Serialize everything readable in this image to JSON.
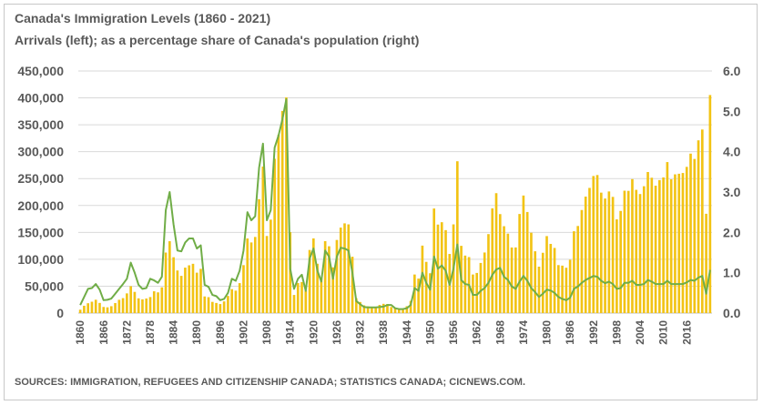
{
  "chart_data": {
    "type": "bar",
    "title": "Canada's  Immigration  Levels  (1860 - 2021)",
    "subtitle": "Arrivals  (left);  as  a  percentage  share  of  Canada's  population  (right)",
    "source": "SOURCES: IMMIGRATION, REFUGEES AND CITIZENSHIP CANADA; STATISTICS CANADA; CICNEWS.COM.",
    "x_start": 1860,
    "x_end": 2021,
    "x_tick_labels": [
      "1860",
      "1866",
      "1872",
      "1878",
      "1884",
      "1890",
      "1896",
      "1902",
      "1908",
      "1914",
      "1920",
      "1926",
      "1932",
      "1938",
      "1944",
      "1950",
      "1956",
      "1962",
      "1968",
      "1974",
      "1980",
      "1986",
      "1992",
      "1998",
      "2004",
      "2010",
      "2016"
    ],
    "y_left_ticks": [
      "0",
      "50,000",
      "100,000",
      "150,000",
      "200,000",
      "250,000",
      "300,000",
      "350,000",
      "400,000",
      "450,000"
    ],
    "y_right_ticks": [
      "0.0",
      "1.0",
      "2.0",
      "3.0",
      "4.0",
      "5.0",
      "6.0"
    ],
    "y_left_lim": [
      0,
      450000
    ],
    "y_right_lim": [
      0,
      6
    ],
    "grid": "horizontal",
    "colors": {
      "arrivals": "#f2c314",
      "share": "#70ad47"
    },
    "series": [
      {
        "type": "bar",
        "axis": "left",
        "values": [
          6300,
          13600,
          18300,
          21100,
          24800,
          18900,
          11400,
          10700,
          12800,
          18600,
          24700,
          27800,
          36600,
          50000,
          39400,
          27400,
          25600,
          27100,
          29800,
          40500,
          38500,
          47900,
          112500,
          133600,
          103800,
          79200,
          69200,
          84500,
          88800,
          91600,
          75100,
          82200,
          30900,
          29600,
          20800,
          18800,
          16800,
          21700,
          31900,
          44500,
          41700,
          55700,
          89100,
          138700,
          131300,
          141500,
          211700,
          272400,
          143300,
          173700,
          286800,
          331300,
          375800,
          400900,
          150500,
          33700,
          55900,
          57700,
          41800,
          117300,
          138800,
          91700,
          64200,
          133700,
          124200,
          84900,
          135900,
          158900,
          166800,
          164900,
          104800,
          27500,
          20600,
          14400,
          12500,
          11300,
          11600,
          15100,
          17200,
          16900,
          11300,
          9300,
          7600,
          8500,
          12800,
          22700,
          71700,
          64100,
          125400,
          95200,
          74000,
          194400,
          164500,
          168900,
          154200,
          109900,
          164900,
          282200,
          125000,
          106900,
          104100,
          71700,
          74600,
          93200,
          112600,
          146800,
          194700,
          222900,
          184000,
          161500,
          147700,
          121900,
          122000,
          184200,
          218500,
          187900,
          149400,
          114900,
          86300,
          112100,
          143100,
          128600,
          121100,
          89200,
          88200,
          84300,
          99200,
          152100,
          161900,
          191600,
          216500,
          232700,
          254800,
          256600,
          223900,
          212900,
          226100,
          216000,
          174200,
          189900,
          227500,
          227200,
          249000,
          229100,
          221300,
          235800,
          262200,
          251600,
          236800,
          247200,
          252200,
          280700,
          248700,
          257900,
          259000,
          260400,
          271800,
          296400,
          286500,
          321100,
          341200,
          184600,
          405300
        ]
      },
      {
        "type": "line",
        "axis": "right",
        "values": [
          0.2,
          0.4,
          0.6,
          0.62,
          0.72,
          0.58,
          0.32,
          0.33,
          0.36,
          0.48,
          0.6,
          0.72,
          0.85,
          1.25,
          1.0,
          0.7,
          0.6,
          0.62,
          0.85,
          0.81,
          0.75,
          0.9,
          2.55,
          3.0,
          2.2,
          1.55,
          1.53,
          1.75,
          1.85,
          1.85,
          1.6,
          1.68,
          0.7,
          0.65,
          0.45,
          0.42,
          0.32,
          0.35,
          0.5,
          0.85,
          0.8,
          1.05,
          1.55,
          2.5,
          2.3,
          2.4,
          3.6,
          4.2,
          2.3,
          2.55,
          4.1,
          4.4,
          4.8,
          5.3,
          1.1,
          0.6,
          0.85,
          0.95,
          0.55,
          1.35,
          1.6,
          1.05,
          0.78,
          1.55,
          1.4,
          0.85,
          1.4,
          1.62,
          1.6,
          1.55,
          1.0,
          0.3,
          0.22,
          0.15,
          0.14,
          0.14,
          0.14,
          0.15,
          0.16,
          0.2,
          0.2,
          0.12,
          0.1,
          0.1,
          0.12,
          0.2,
          0.62,
          0.55,
          1.0,
          0.75,
          0.58,
          1.4,
          1.1,
          1.18,
          1.05,
          0.7,
          1.1,
          1.7,
          0.82,
          0.72,
          0.7,
          0.45,
          0.45,
          0.55,
          0.62,
          0.75,
          0.95,
          1.08,
          1.12,
          0.9,
          0.82,
          0.66,
          0.6,
          0.78,
          0.92,
          0.8,
          0.62,
          0.52,
          0.4,
          0.48,
          0.58,
          0.56,
          0.5,
          0.4,
          0.35,
          0.32,
          0.38,
          0.6,
          0.66,
          0.75,
          0.82,
          0.87,
          0.92,
          0.9,
          0.8,
          0.74,
          0.78,
          0.72,
          0.6,
          0.62,
          0.75,
          0.75,
          0.8,
          0.7,
          0.7,
          0.72,
          0.82,
          0.78,
          0.72,
          0.72,
          0.72,
          0.8,
          0.72,
          0.72,
          0.72,
          0.72,
          0.76,
          0.82,
          0.8,
          0.88,
          0.92,
          0.48,
          1.07
        ]
      }
    ]
  }
}
